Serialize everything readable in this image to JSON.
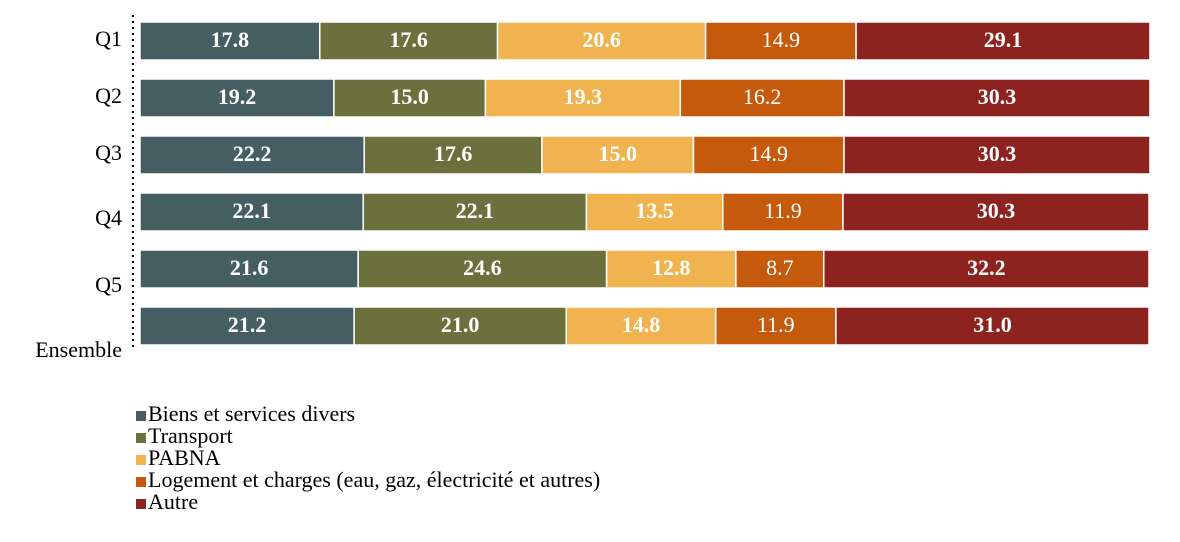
{
  "chart_data": {
    "type": "stacked_bar_horizontal",
    "categories": [
      "Q1",
      "Q2",
      "Q3",
      "Q4",
      "Q5",
      "Ensemble"
    ],
    "xlim": [
      0,
      100
    ],
    "legend": "bottom",
    "series": [
      {
        "name": "Biens et services divers",
        "color": "#455e62",
        "values": [
          17.8,
          19.2,
          22.2,
          22.1,
          21.6,
          21.2
        ],
        "value_labels": [
          "17.8",
          "19.2",
          "22.2",
          "22.1",
          "21.6",
          "21.2"
        ]
      },
      {
        "name": "Transport",
        "color": "#6b703c",
        "values": [
          17.6,
          15.0,
          17.6,
          22.1,
          24.6,
          21.0
        ],
        "value_labels": [
          "17.6",
          "15.0",
          "17.6",
          "22.1",
          "24.6",
          "21.0"
        ]
      },
      {
        "name": "PABNA",
        "color": "#f0b34f",
        "values": [
          20.6,
          19.3,
          15.0,
          13.5,
          12.8,
          14.8
        ],
        "value_labels": [
          "20.6",
          "19.3",
          "15.0",
          "13.5",
          "12.8",
          "14.8"
        ]
      },
      {
        "name": "Logement et charges (eau, gaz, électricité et autres)",
        "color": "#c55a0c",
        "values": [
          14.9,
          16.2,
          14.9,
          11.9,
          8.7,
          11.9
        ],
        "value_labels": [
          "14.9",
          "16.2",
          "14.9",
          "11.9",
          "8.7",
          "11.9"
        ]
      },
      {
        "name": "Autre",
        "color": "#8c231e",
        "values": [
          29.1,
          30.3,
          30.3,
          30.3,
          32.2,
          31.0
        ],
        "value_labels": [
          "29.1",
          "30.3",
          "30.3",
          "30.3",
          "32.2",
          "31.0"
        ]
      }
    ]
  }
}
